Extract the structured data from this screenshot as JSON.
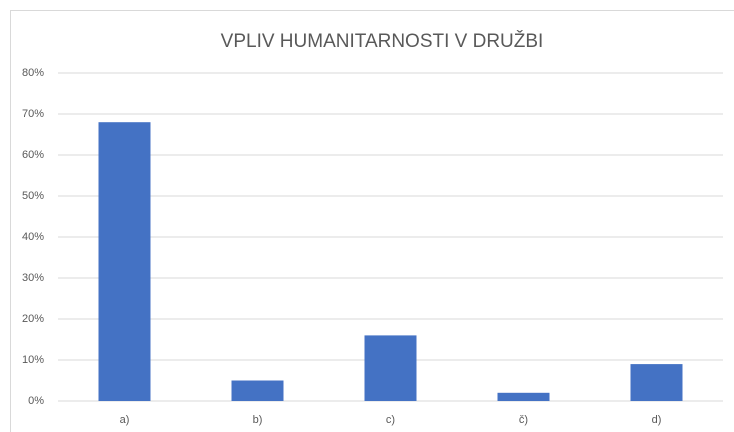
{
  "chart_data": {
    "type": "bar",
    "title": "VPLIV HUMANITARNOSTI V DRUŽBI",
    "categories": [
      "a)",
      "b)",
      "c)",
      "č)",
      "d)"
    ],
    "values": [
      68,
      5,
      16,
      2,
      9
    ],
    "color": "#4472c4",
    "ylim": [
      0,
      80
    ],
    "yticks": [
      {
        "value": 0,
        "label": "0%"
      },
      {
        "value": 10,
        "label": "10%"
      },
      {
        "value": 20,
        "label": "20%"
      },
      {
        "value": 30,
        "label": "30%"
      },
      {
        "value": 40,
        "label": "40%"
      },
      {
        "value": 50,
        "label": "50%"
      },
      {
        "value": 60,
        "label": "60%"
      },
      {
        "value": 70,
        "label": "70%"
      },
      {
        "value": 80,
        "label": "80%"
      }
    ],
    "grid": true
  }
}
